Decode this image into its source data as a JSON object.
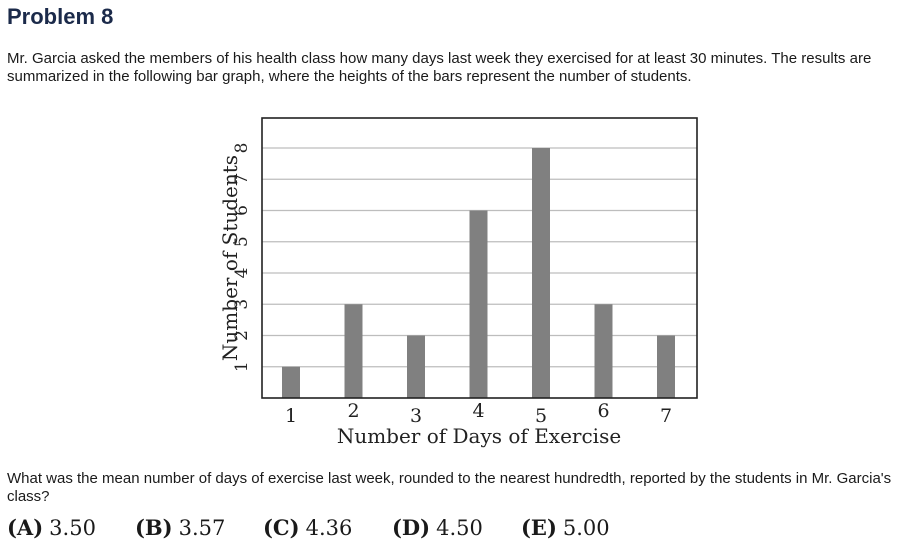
{
  "problem": {
    "title": "Problem 8",
    "intro": "Mr. Garcia asked the members of his health class how many days last week they exercised for at least 30 minutes. The results are summarized in the following bar graph, where the heights of the bars represent the number of students.",
    "question": "What was the mean number of days of exercise last week, rounded to the nearest hundredth, reported by the students in Mr. Garcia's class?",
    "choices": [
      {
        "letter": "(A)",
        "value": "3.50"
      },
      {
        "letter": "(B)",
        "value": "3.57"
      },
      {
        "letter": "(C)",
        "value": "4.36"
      },
      {
        "letter": "(D)",
        "value": "4.50"
      },
      {
        "letter": "(E)",
        "value": "5.00"
      }
    ]
  },
  "chart_data": {
    "type": "bar",
    "categories": [
      "1",
      "2",
      "3",
      "4",
      "5",
      "6",
      "7"
    ],
    "values": [
      1,
      3,
      2,
      6,
      8,
      3,
      2
    ],
    "title": "",
    "xlabel": "Number of Days of Exercise",
    "ylabel": "Number of Students",
    "ylim": [
      0,
      8
    ],
    "yticks": [
      "1",
      "2",
      "3",
      "4",
      "5",
      "6",
      "7",
      "8"
    ],
    "grid": "horizontal",
    "bar_color": "#808080"
  }
}
